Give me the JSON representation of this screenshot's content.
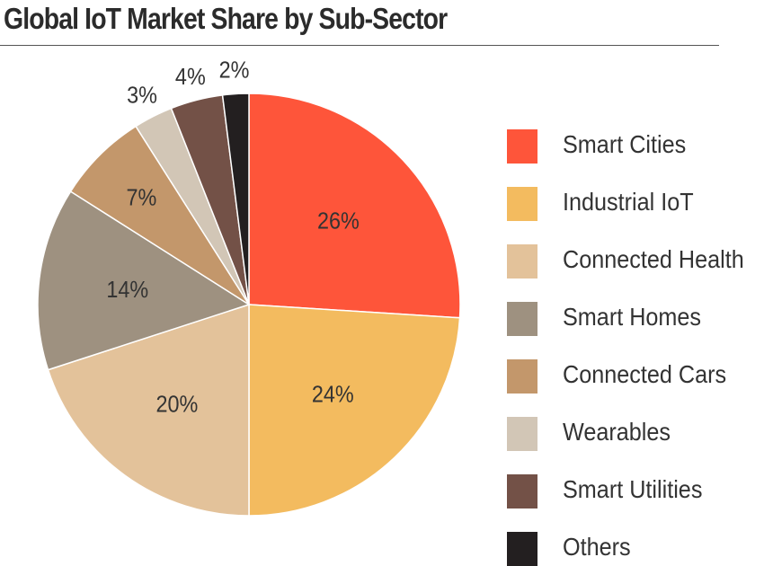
{
  "chart_data": {
    "type": "pie",
    "title": "Global IoT Market Share by Sub-Sector",
    "legend_position": "right",
    "slices": [
      {
        "label": "Smart Cities",
        "value": 26,
        "display": "26%",
        "color": "#fe553a"
      },
      {
        "label": "Industrial IoT",
        "value": 24,
        "display": "24%",
        "color": "#f3bb5f"
      },
      {
        "label": "Connected Health",
        "value": 20,
        "display": "20%",
        "color": "#e3c29a"
      },
      {
        "label": "Smart Homes",
        "value": 14,
        "display": "14%",
        "color": "#9e9180"
      },
      {
        "label": "Connected Cars",
        "value": 7,
        "display": "7%",
        "color": "#c3976b"
      },
      {
        "label": "Wearables",
        "value": 3,
        "display": "3%",
        "color": "#d2c6b6"
      },
      {
        "label": "Smart Utilities",
        "value": 4,
        "display": "4%",
        "color": "#735147"
      },
      {
        "label": "Others",
        "value": 2,
        "display": "2%",
        "color": "#231f20"
      }
    ]
  }
}
